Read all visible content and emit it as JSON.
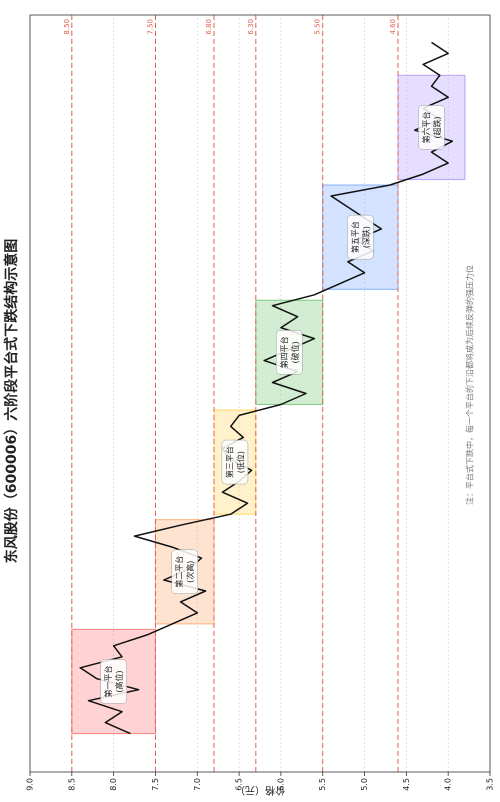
{
  "chart_data": {
    "type": "line",
    "title": "东风股份（600006）六阶段平台式下跌结构示意图",
    "ylabel": "价格（元）",
    "annotation": "注：平台式下跌中，每一个平台的下沿都将成为后续反弹的强压力位",
    "x": [
      0,
      2,
      4,
      6,
      8,
      10,
      12,
      14,
      16,
      18,
      20,
      22,
      24,
      26,
      28,
      30,
      32,
      34,
      36,
      38,
      40,
      42,
      44,
      46,
      48,
      50,
      52,
      54,
      56,
      58,
      60,
      62,
      64,
      66,
      68,
      70,
      72,
      74,
      76,
      78,
      80,
      82,
      84,
      86,
      88,
      90,
      92,
      94,
      96,
      98,
      100,
      102,
      104,
      106,
      108,
      110,
      112,
      114,
      116,
      118,
      120,
      122,
      124,
      126
    ],
    "values": [
      7.8,
      8.1,
      7.9,
      8.3,
      7.7,
      8.2,
      8.4,
      7.9,
      8.0,
      7.6,
      7.3,
      7.0,
      7.2,
      6.9,
      7.4,
      7.1,
      6.95,
      7.3,
      7.75,
      7.2,
      6.6,
      6.4,
      6.7,
      6.5,
      6.35,
      6.6,
      6.7,
      6.45,
      6.6,
      6.5,
      6.0,
      5.7,
      6.1,
      5.8,
      6.2,
      5.9,
      5.6,
      6.0,
      5.8,
      6.1,
      5.6,
      5.3,
      5.0,
      5.2,
      4.9,
      5.1,
      4.8,
      5.0,
      5.2,
      5.4,
      4.7,
      4.3,
      4.0,
      4.2,
      3.95,
      4.4,
      4.1,
      4.3,
      4.0,
      4.2,
      4.1,
      4.3,
      4.0,
      4.2
    ],
    "color": "#111111",
    "xlim": [
      -7,
      131
    ],
    "ylim": [
      3.5,
      9.0
    ],
    "yticks": [
      {
        "value": 9,
        "label": "9.0"
      },
      8.5,
      {
        "value": 8,
        "label": "8.0"
      },
      7.5,
      {
        "value": 7,
        "label": "7.0"
      },
      6.5,
      {
        "value": 6,
        "label": "6.0"
      },
      5.5,
      {
        "value": 5,
        "label": "5.0"
      },
      4.5,
      {
        "value": 4,
        "label": "4.0"
      },
      3.5
    ],
    "grid": true,
    "levels": [
      {
        "value": 8.5,
        "label": "8.50"
      },
      {
        "value": 7.5,
        "label": "7.50"
      },
      {
        "value": 6.8,
        "label": "6.80"
      },
      {
        "value": 6.3,
        "label": "6.30"
      },
      {
        "value": 5.5,
        "label": "5.50"
      },
      {
        "value": 4.6,
        "label": "4.60"
      }
    ],
    "level_color": "#e06050",
    "platforms": [
      {
        "name": "第一平台",
        "tag": "(高位)",
        "start": 0,
        "end": 19,
        "low": 7.5,
        "high": 8.5,
        "color": "#ff8080"
      },
      {
        "name": "第二平台",
        "tag": "(次高)",
        "start": 20,
        "end": 39,
        "low": 6.8,
        "high": 7.5,
        "color": "#ffb07a"
      },
      {
        "name": "第三平台",
        "tag": "(低位)",
        "start": 40,
        "end": 59,
        "low": 6.3,
        "high": 6.8,
        "color": "#ffd966"
      },
      {
        "name": "第四平台",
        "tag": "(破位)",
        "start": 60,
        "end": 79,
        "low": 5.5,
        "high": 6.3,
        "color": "#7fcc7f"
      },
      {
        "name": "第五平台",
        "tag": "(深跌)",
        "start": 81,
        "end": 100,
        "low": 4.6,
        "high": 5.5,
        "color": "#80b0ff"
      },
      {
        "name": "第六平台",
        "tag": "(超跌)",
        "start": 101,
        "end": 120,
        "low": 3.8,
        "high": 4.6,
        "color": "#b8a0ff"
      }
    ]
  }
}
